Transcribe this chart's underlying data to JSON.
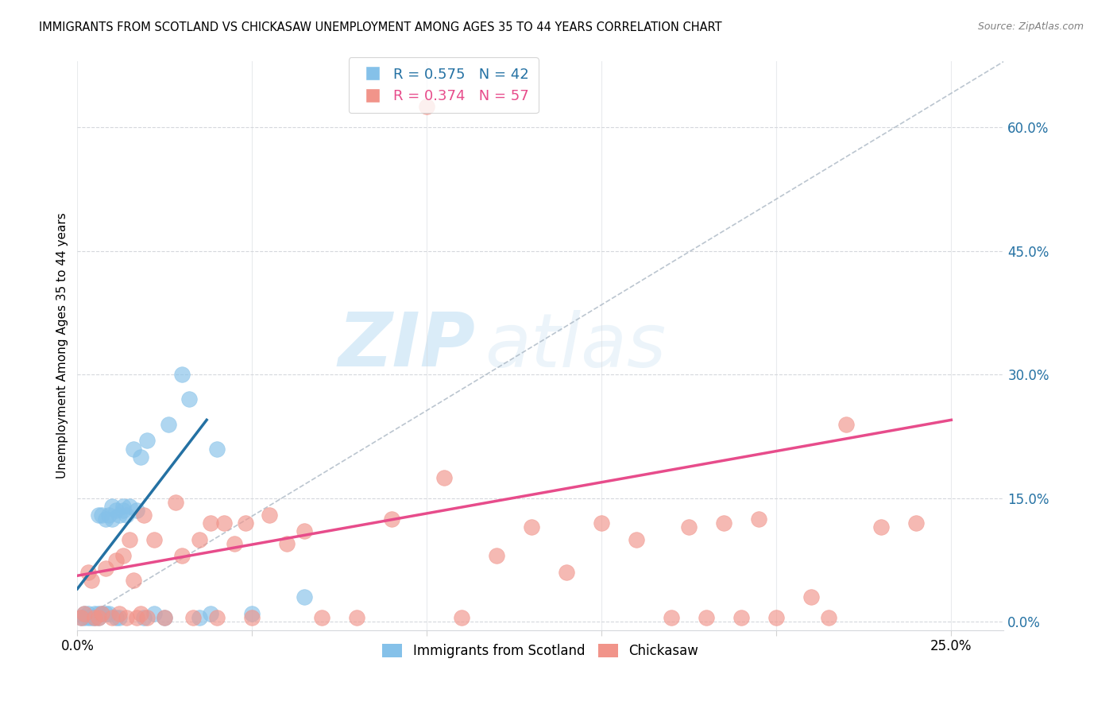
{
  "title": "IMMIGRANTS FROM SCOTLAND VS CHICKASAW UNEMPLOYMENT AMONG AGES 35 TO 44 YEARS CORRELATION CHART",
  "source": "Source: ZipAtlas.com",
  "ylabel": "Unemployment Among Ages 35 to 44 years",
  "xlim": [
    0.0,
    0.265
  ],
  "ylim": [
    -0.01,
    0.68
  ],
  "xtick_positions": [
    0.0,
    0.05,
    0.1,
    0.15,
    0.2,
    0.25
  ],
  "xtick_labels_show": [
    "0.0%",
    "",
    "",
    "",
    "",
    "25.0%"
  ],
  "yticks_right": [
    0.0,
    0.15,
    0.3,
    0.45,
    0.6
  ],
  "blue_color": "#85c1e9",
  "pink_color": "#f1948a",
  "blue_line_color": "#2471a3",
  "pink_line_color": "#e74c8b",
  "diag_color": "#aab7c4",
  "R_blue": 0.575,
  "N_blue": 42,
  "R_pink": 0.374,
  "N_pink": 57,
  "legend_labels": [
    "Immigrants from Scotland",
    "Chickasaw"
  ],
  "watermark_zip": "ZIP",
  "watermark_atlas": "atlas",
  "blue_scatter_x": [
    0.001,
    0.002,
    0.002,
    0.003,
    0.003,
    0.004,
    0.005,
    0.005,
    0.006,
    0.006,
    0.006,
    0.007,
    0.007,
    0.008,
    0.008,
    0.009,
    0.009,
    0.01,
    0.01,
    0.011,
    0.011,
    0.012,
    0.012,
    0.013,
    0.013,
    0.014,
    0.015,
    0.016,
    0.017,
    0.018,
    0.019,
    0.02,
    0.022,
    0.025,
    0.026,
    0.03,
    0.032,
    0.035,
    0.038,
    0.04,
    0.05,
    0.065
  ],
  "blue_scatter_y": [
    0.005,
    0.005,
    0.01,
    0.005,
    0.01,
    0.005,
    0.005,
    0.01,
    0.005,
    0.01,
    0.13,
    0.01,
    0.13,
    0.01,
    0.125,
    0.01,
    0.13,
    0.125,
    0.14,
    0.005,
    0.135,
    0.13,
    0.005,
    0.135,
    0.14,
    0.13,
    0.14,
    0.21,
    0.135,
    0.2,
    0.005,
    0.22,
    0.01,
    0.005,
    0.24,
    0.3,
    0.27,
    0.005,
    0.01,
    0.21,
    0.01,
    0.03
  ],
  "pink_scatter_x": [
    0.001,
    0.002,
    0.003,
    0.004,
    0.005,
    0.006,
    0.007,
    0.008,
    0.01,
    0.011,
    0.012,
    0.013,
    0.014,
    0.015,
    0.016,
    0.017,
    0.018,
    0.019,
    0.02,
    0.022,
    0.025,
    0.028,
    0.03,
    0.033,
    0.035,
    0.038,
    0.04,
    0.042,
    0.045,
    0.048,
    0.05,
    0.055,
    0.06,
    0.065,
    0.07,
    0.08,
    0.09,
    0.1,
    0.105,
    0.11,
    0.12,
    0.13,
    0.14,
    0.15,
    0.16,
    0.17,
    0.175,
    0.18,
    0.185,
    0.19,
    0.195,
    0.2,
    0.21,
    0.215,
    0.22,
    0.23,
    0.24
  ],
  "pink_scatter_y": [
    0.005,
    0.01,
    0.06,
    0.05,
    0.005,
    0.005,
    0.01,
    0.065,
    0.005,
    0.075,
    0.01,
    0.08,
    0.005,
    0.1,
    0.05,
    0.005,
    0.01,
    0.13,
    0.005,
    0.1,
    0.005,
    0.145,
    0.08,
    0.005,
    0.1,
    0.12,
    0.005,
    0.12,
    0.095,
    0.12,
    0.005,
    0.13,
    0.095,
    0.11,
    0.005,
    0.005,
    0.125,
    0.625,
    0.175,
    0.005,
    0.08,
    0.115,
    0.06,
    0.12,
    0.1,
    0.005,
    0.115,
    0.005,
    0.12,
    0.005,
    0.125,
    0.005,
    0.03,
    0.005,
    0.24,
    0.115,
    0.12
  ],
  "blue_trend_x": [
    0.0,
    0.037
  ],
  "blue_trend_y": [
    0.04,
    0.245
  ],
  "pink_trend_x": [
    0.0,
    0.25
  ],
  "pink_trend_y": [
    0.056,
    0.245
  ]
}
